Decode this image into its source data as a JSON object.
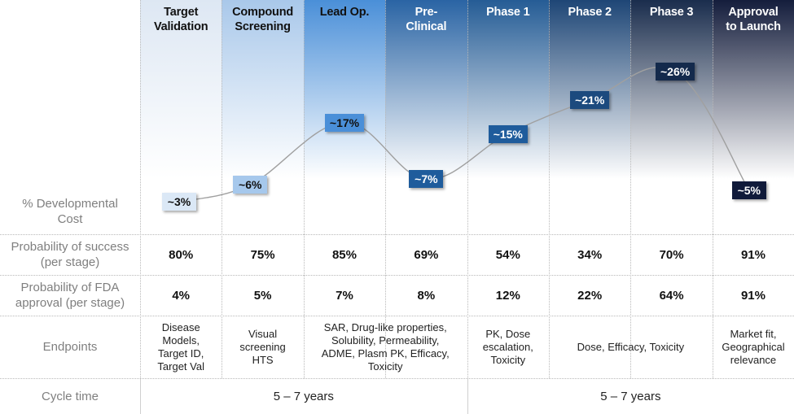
{
  "stages": [
    {
      "name": "Target Validation",
      "lines": [
        "Target",
        "Validation"
      ],
      "header_color": "#dde7f3",
      "text_color": "#111111"
    },
    {
      "name": "Compound Screening",
      "lines": [
        "Compound",
        "Screening"
      ],
      "header_color": "#a9c8ea",
      "text_color": "#111111"
    },
    {
      "name": "Lead Op.",
      "lines": [
        "Lead Op.",
        ""
      ],
      "header_color": "#4a8fd8",
      "text_color": "#111111"
    },
    {
      "name": "Pre-Clinical",
      "lines": [
        "Pre-",
        "Clinical"
      ],
      "header_color": "#2a64a4",
      "text_color": "#ffffff"
    },
    {
      "name": "Phase 1",
      "lines": [
        "Phase 1",
        ""
      ],
      "header_color": "#255c95",
      "text_color": "#ffffff"
    },
    {
      "name": "Phase 2",
      "lines": [
        "Phase 2",
        ""
      ],
      "header_color": "#1e4676",
      "text_color": "#ffffff"
    },
    {
      "name": "Phase 3",
      "lines": [
        "Phase 3",
        ""
      ],
      "header_color": "#1a2d4d",
      "text_color": "#ffffff"
    },
    {
      "name": "Approval to Launch",
      "lines": [
        "Approval",
        "to Launch"
      ],
      "header_color": "#141d3c",
      "text_color": "#ffffff"
    }
  ],
  "row_labels": {
    "cost": [
      "% Developmental",
      "Cost"
    ],
    "pos": [
      "Probability of success",
      "(per stage)"
    ],
    "fda": [
      "Probability of FDA",
      "approval (per stage)"
    ],
    "endpoints": [
      "Endpoints"
    ],
    "cycle": [
      "Cycle time"
    ]
  },
  "chart_data": {
    "type": "line",
    "title": "% Developmental Cost",
    "categories": [
      "Target Validation",
      "Compound Screening",
      "Lead Op.",
      "Pre-Clinical",
      "Phase 1",
      "Phase 2",
      "Phase 3",
      "Approval to Launch"
    ],
    "values": [
      3,
      6,
      17,
      7,
      15,
      21,
      26,
      5
    ],
    "labels": [
      "~3%",
      "~6%",
      "~17%",
      "~7%",
      "~15%",
      "~21%",
      "~26%",
      "~5%"
    ],
    "badge_colors": [
      "#dbe8f6",
      "#a6c8ec",
      "#4a8fd8",
      "#1f5c9c",
      "#1f5c9c",
      "#1c4a7e",
      "#142a4c",
      "#101a3a"
    ],
    "badge_text_colors": [
      "#111111",
      "#111111",
      "#111111",
      "#ffffff",
      "#ffffff",
      "#ffffff",
      "#ffffff",
      "#ffffff"
    ],
    "line_color": "#a0a0a0",
    "xlabel": "",
    "ylabel": "% Developmental Cost",
    "ylim": [
      0,
      30
    ],
    "grid": false
  },
  "probability_of_success": [
    "80%",
    "75%",
    "85%",
    "69%",
    "54%",
    "34%",
    "70%",
    "91%"
  ],
  "probability_of_fda_approval": [
    "4%",
    "5%",
    "7%",
    "8%",
    "12%",
    "22%",
    "64%",
    "91%"
  ],
  "endpoints": [
    {
      "span": [
        0,
        0
      ],
      "lines": [
        "Disease",
        "Models,",
        "Target ID,",
        "Target Val"
      ]
    },
    {
      "span": [
        1,
        1
      ],
      "lines": [
        "Visual",
        "screening",
        "HTS"
      ]
    },
    {
      "span": [
        2,
        3
      ],
      "lines": [
        "SAR, Drug-like properties,",
        "Solubility, Permeability,",
        "ADME, Plasm PK, Efficacy,",
        "Toxicity"
      ]
    },
    {
      "span": [
        4,
        4
      ],
      "lines": [
        "PK, Dose",
        "escalation,",
        "Toxicity"
      ]
    },
    {
      "span": [
        5,
        6
      ],
      "lines": [
        "Dose, Efficacy, Toxicity"
      ]
    },
    {
      "span": [
        7,
        7
      ],
      "lines": [
        "Market fit,",
        "Geographical",
        "relevance"
      ]
    }
  ],
  "cycle_time": [
    {
      "span": [
        0,
        3
      ],
      "text": "5 – 7 years"
    },
    {
      "span": [
        4,
        7
      ],
      "text": "5 – 7 years"
    }
  ]
}
